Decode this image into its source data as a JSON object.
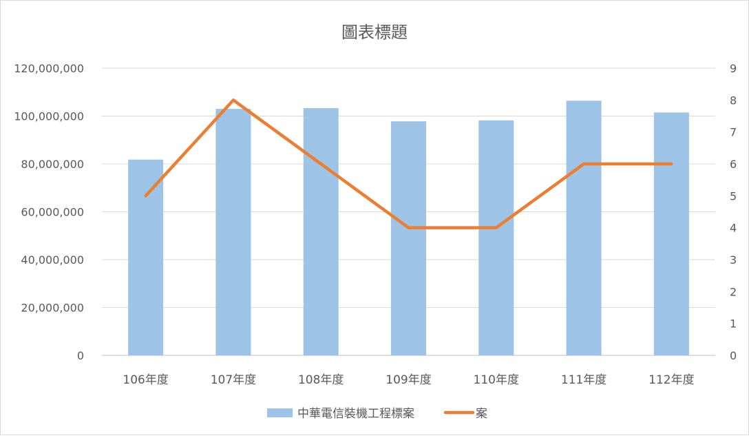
{
  "chart_data": {
    "type": "bar",
    "title": "圖表標題",
    "categories": [
      "106年度",
      "107年度",
      "108年度",
      "109年度",
      "110年度",
      "111年度",
      "112年度"
    ],
    "series": [
      {
        "name": "中華電信裝機工程標案",
        "type": "bar",
        "axis": "left",
        "color": "#9DC3E6",
        "values": [
          81800000,
          103000000,
          103300000,
          97800000,
          98200000,
          106400000,
          101500000
        ]
      },
      {
        "name": "案",
        "type": "line",
        "axis": "right",
        "color": "#ED7D31",
        "values": [
          5,
          8,
          6,
          4,
          4,
          6,
          6
        ]
      }
    ],
    "y_left": {
      "ylim": [
        0,
        120000000
      ],
      "ticks": [
        "0",
        "20,000,000",
        "40,000,000",
        "60,000,000",
        "80,000,000",
        "100,000,000",
        "120,000,000"
      ]
    },
    "y_right": {
      "ylim": [
        0,
        9
      ],
      "ticks": [
        "0",
        "1",
        "2",
        "3",
        "4",
        "5",
        "6",
        "7",
        "8",
        "9"
      ]
    },
    "grid": true,
    "legend": "bottom"
  }
}
